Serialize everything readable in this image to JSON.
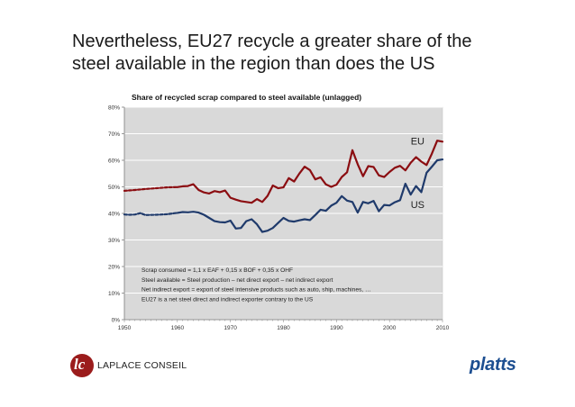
{
  "slide": {
    "title_line1": "Nevertheless, EU27 recycle a greater share of the",
    "title_line2": "steel available in the region than does the US"
  },
  "colors": {
    "eu": "#8b0d11",
    "us": "#1f3a6b",
    "plot_bg": "#d9d9d9",
    "grid": "#ffffff",
    "platts": "#1d4f91",
    "laplace": "#9b1c1c"
  },
  "chart_data": {
    "type": "line",
    "title": "Share of recycled scrap compared to steel available (unlagged)",
    "xlim": [
      1950,
      2010
    ],
    "ylim": [
      0,
      80
    ],
    "y_unit": "%",
    "grid": "horizontal",
    "x_ticks": [
      "1950",
      "1960",
      "1970",
      "1980",
      "1990",
      "2000",
      "2010"
    ],
    "y_ticks": [
      "0%",
      "10%",
      "20%",
      "30%",
      "40%",
      "50%",
      "60%",
      "70%",
      "80%"
    ],
    "series": [
      {
        "name": "EU",
        "segments": [
          {
            "style": "dashed",
            "points": [
              [
                1950,
                48.5
              ],
              [
                1952,
                48.8
              ],
              [
                1954,
                49.2
              ],
              [
                1956,
                49.5
              ],
              [
                1958,
                49.8
              ],
              [
                1960,
                49.9
              ]
            ]
          },
          {
            "style": "solid",
            "points": [
              [
                1960,
                49.9
              ],
              [
                1961,
                50.2
              ],
              [
                1962,
                50.3
              ],
              [
                1963,
                51.0
              ],
              [
                1964,
                48.8
              ],
              [
                1965,
                47.9
              ],
              [
                1966,
                47.5
              ],
              [
                1967,
                48.4
              ],
              [
                1968,
                48.0
              ],
              [
                1969,
                48.6
              ],
              [
                1970,
                45.9
              ],
              [
                1971,
                45.2
              ],
              [
                1972,
                44.6
              ],
              [
                1973,
                44.3
              ],
              [
                1974,
                44.0
              ],
              [
                1975,
                45.4
              ],
              [
                1976,
                44.3
              ],
              [
                1977,
                46.6
              ],
              [
                1978,
                50.5
              ],
              [
                1979,
                49.5
              ],
              [
                1980,
                49.8
              ],
              [
                1981,
                53.3
              ],
              [
                1982,
                52.0
              ],
              [
                1983,
                55.0
              ],
              [
                1984,
                57.6
              ],
              [
                1985,
                56.3
              ],
              [
                1986,
                52.8
              ],
              [
                1987,
                53.6
              ],
              [
                1988,
                50.9
              ],
              [
                1989,
                50.0
              ],
              [
                1990,
                50.8
              ],
              [
                1991,
                53.7
              ],
              [
                1992,
                55.5
              ],
              [
                1993,
                63.8
              ],
              [
                1994,
                58.5
              ],
              [
                1995,
                54.0
              ],
              [
                1996,
                57.8
              ],
              [
                1997,
                57.5
              ],
              [
                1998,
                54.3
              ],
              [
                1999,
                53.7
              ],
              [
                2000,
                55.6
              ],
              [
                2001,
                57.2
              ],
              [
                2002,
                57.9
              ],
              [
                2003,
                56.2
              ],
              [
                2004,
                59.1
              ],
              [
                2005,
                61.2
              ],
              [
                2006,
                59.5
              ],
              [
                2007,
                58.2
              ],
              [
                2008,
                62.5
              ],
              [
                2009,
                67.4
              ],
              [
                2010,
                67.0
              ]
            ]
          }
        ]
      },
      {
        "name": "US",
        "segments": [
          {
            "style": "dashed",
            "points": [
              [
                1950,
                39.6
              ],
              [
                1951,
                39.5
              ],
              [
                1952,
                39.6
              ],
              [
                1953,
                40.1
              ],
              [
                1954,
                39.4
              ],
              [
                1956,
                39.5
              ],
              [
                1958,
                39.7
              ],
              [
                1960,
                40.2
              ]
            ]
          },
          {
            "style": "solid",
            "points": [
              [
                1960,
                40.2
              ],
              [
                1961,
                40.5
              ],
              [
                1962,
                40.4
              ],
              [
                1963,
                40.6
              ],
              [
                1964,
                40.3
              ],
              [
                1965,
                39.5
              ],
              [
                1966,
                38.3
              ],
              [
                1967,
                37.1
              ],
              [
                1968,
                36.7
              ],
              [
                1969,
                36.6
              ],
              [
                1970,
                37.3
              ],
              [
                1971,
                34.3
              ],
              [
                1972,
                34.5
              ],
              [
                1973,
                37.1
              ],
              [
                1974,
                37.8
              ],
              [
                1975,
                35.9
              ],
              [
                1976,
                33.0
              ],
              [
                1977,
                33.5
              ],
              [
                1978,
                34.5
              ],
              [
                1979,
                36.4
              ],
              [
                1980,
                38.3
              ],
              [
                1981,
                37.2
              ],
              [
                1982,
                36.9
              ],
              [
                1983,
                37.4
              ],
              [
                1984,
                37.8
              ],
              [
                1985,
                37.5
              ],
              [
                1986,
                39.4
              ],
              [
                1987,
                41.4
              ],
              [
                1988,
                41.0
              ],
              [
                1989,
                42.9
              ],
              [
                1990,
                44.0
              ],
              [
                1991,
                46.5
              ],
              [
                1992,
                44.8
              ],
              [
                1993,
                44.3
              ],
              [
                1994,
                40.3
              ],
              [
                1995,
                44.3
              ],
              [
                1996,
                43.8
              ],
              [
                1997,
                44.7
              ],
              [
                1998,
                40.8
              ],
              [
                1999,
                43.2
              ],
              [
                2000,
                43.0
              ],
              [
                2001,
                44.2
              ],
              [
                2002,
                45.0
              ],
              [
                2003,
                51.2
              ],
              [
                2004,
                47.1
              ],
              [
                2005,
                50.3
              ],
              [
                2006,
                48.0
              ],
              [
                2007,
                55.3
              ],
              [
                2008,
                57.6
              ],
              [
                2009,
                60.0
              ],
              [
                2010,
                60.3
              ]
            ]
          }
        ]
      }
    ],
    "labels": [
      {
        "text": "EU",
        "x": 2004,
        "y": 66.0,
        "series": "EU"
      },
      {
        "text": "US",
        "x": 2004,
        "y": 42.0,
        "series": "US"
      }
    ],
    "annotation_lines": [
      "Scrap consumed = 1,1 x EAF + 0,15 x BOF + 0,35 x OHF",
      "Steel available = Steel production – net direct export – net indirect export",
      "Net indirect export = export of steel intensive products such as auto, ship, machines, …",
      "EU27 is a net steel direct and indirect exporter contrary to the US"
    ]
  },
  "footer": {
    "left_logo_mark": "lc",
    "left_logo_text": "LAPLACE CONSEIL",
    "right_logo_text": "platts"
  }
}
